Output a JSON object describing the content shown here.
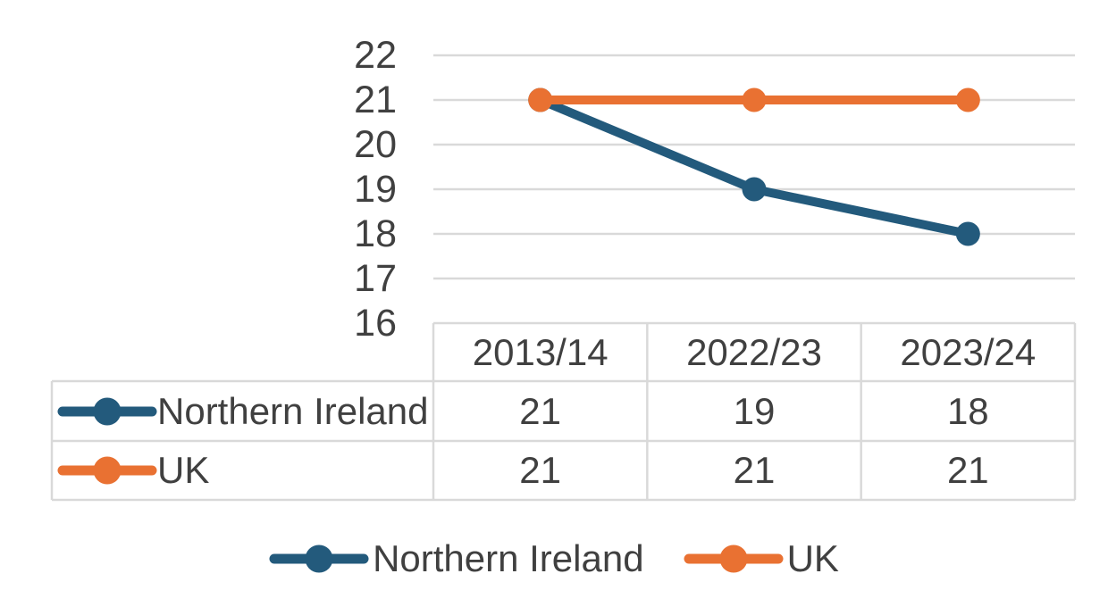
{
  "chart_data": {
    "type": "line",
    "title": "",
    "xlabel": "",
    "ylabel": "",
    "categories": [
      "2013/14",
      "2022/23",
      "2023/24"
    ],
    "series": [
      {
        "name": "Northern Ireland",
        "values": [
          21,
          19,
          18
        ],
        "color": "#235A7C"
      },
      {
        "name": "UK",
        "values": [
          21,
          21,
          21
        ],
        "color": "#E97132"
      }
    ],
    "ylim": [
      16,
      22
    ],
    "yticks": [
      22,
      21,
      20,
      19,
      18,
      17,
      16
    ],
    "grid": true,
    "marker": "circle",
    "legend_position": "bottom",
    "data_table_shown": true
  },
  "colors": {
    "background": "#FFFFFF",
    "gridline": "#D9D9D9",
    "table_border": "#D9D9D9",
    "text": "#404040",
    "series_northern_ireland": "#235A7C",
    "series_uk": "#E97132"
  }
}
